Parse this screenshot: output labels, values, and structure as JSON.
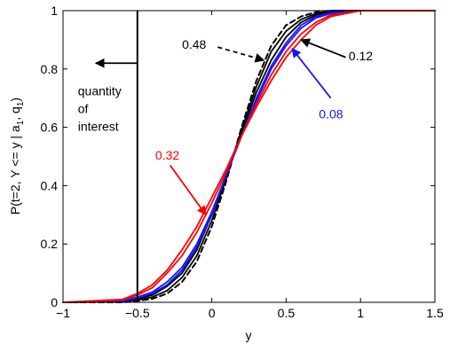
{
  "chart_data": {
    "type": "line",
    "title": "",
    "xlabel": "y",
    "ylabel": "P(t=2, Y <= y | a_1, q_1)",
    "ylabel_parts": {
      "main": "P(t=2, Y <= y | a",
      "sub1": "1",
      "mid": ", q",
      "sub2": "1",
      "end": ")"
    },
    "xlim": [
      -1,
      1.5
    ],
    "ylim": [
      0,
      1
    ],
    "xticks": [
      -1,
      -0.5,
      0,
      0.5,
      1,
      1.5
    ],
    "xtick_labels": [
      "−1",
      "−0.5",
      "0",
      "0.5",
      "1",
      "1.5"
    ],
    "yticks": [
      0,
      0.2,
      0.4,
      0.6,
      0.8,
      1
    ],
    "ytick_labels": [
      "0",
      "0.2",
      "0.4",
      "0.6",
      "0.8",
      "1"
    ],
    "grid": false,
    "colors": {
      "black": "#000000",
      "blue": "#1515ff",
      "red": "#ff0000"
    },
    "series": [
      {
        "color": "#000000",
        "dash": true,
        "width": 2.0,
        "x": [
          -1,
          -0.6,
          -0.5,
          -0.4,
          -0.3,
          -0.2,
          -0.1,
          0,
          0.1,
          0.2,
          0.3,
          0.4,
          0.5,
          0.6,
          0.7,
          0.8,
          1,
          1.5
        ],
        "y": [
          0,
          0,
          0.005,
          0.012,
          0.03,
          0.07,
          0.14,
          0.26,
          0.42,
          0.6,
          0.76,
          0.88,
          0.95,
          0.98,
          0.995,
          1,
          1,
          1
        ]
      },
      {
        "color": "#000000",
        "dash": false,
        "width": 1.8,
        "x": [
          -1,
          -0.6,
          -0.5,
          -0.4,
          -0.3,
          -0.2,
          -0.1,
          0,
          0.1,
          0.2,
          0.3,
          0.4,
          0.5,
          0.6,
          0.7,
          0.8,
          1,
          1.5
        ],
        "y": [
          0,
          0.002,
          0.008,
          0.018,
          0.04,
          0.085,
          0.16,
          0.28,
          0.43,
          0.59,
          0.74,
          0.86,
          0.93,
          0.97,
          0.99,
          1,
          1,
          1
        ]
      },
      {
        "color": "#000000",
        "dash": false,
        "width": 1.8,
        "x": [
          -1,
          -0.6,
          -0.5,
          -0.4,
          -0.3,
          -0.2,
          -0.1,
          0,
          0.1,
          0.2,
          0.3,
          0.4,
          0.5,
          0.6,
          0.7,
          0.8,
          1,
          1.5
        ],
        "y": [
          0,
          0.003,
          0.012,
          0.025,
          0.055,
          0.1,
          0.18,
          0.3,
          0.44,
          0.58,
          0.72,
          0.83,
          0.91,
          0.96,
          0.985,
          0.997,
          1,
          1
        ]
      },
      {
        "color": "#1515ff",
        "dash": false,
        "width": 1.8,
        "x": [
          -1,
          -0.6,
          -0.5,
          -0.4,
          -0.3,
          -0.2,
          -0.1,
          0,
          0.1,
          0.2,
          0.3,
          0.4,
          0.5,
          0.6,
          0.7,
          0.8,
          1,
          1.5
        ],
        "y": [
          0,
          0.004,
          0.015,
          0.03,
          0.06,
          0.11,
          0.19,
          0.3,
          0.44,
          0.57,
          0.7,
          0.81,
          0.89,
          0.95,
          0.98,
          0.993,
          1,
          1
        ]
      },
      {
        "color": "#1515ff",
        "dash": false,
        "width": 1.8,
        "x": [
          -1,
          -0.6,
          -0.5,
          -0.4,
          -0.3,
          -0.2,
          -0.1,
          0,
          0.1,
          0.2,
          0.3,
          0.4,
          0.5,
          0.6,
          0.7,
          0.8,
          1,
          1.5
        ],
        "y": [
          0,
          0.005,
          0.018,
          0.035,
          0.07,
          0.12,
          0.2,
          0.31,
          0.44,
          0.57,
          0.69,
          0.8,
          0.88,
          0.94,
          0.975,
          0.99,
          1,
          1
        ]
      },
      {
        "color": "#ff0000",
        "dash": false,
        "width": 1.8,
        "x": [
          -1,
          -0.6,
          -0.5,
          -0.4,
          -0.3,
          -0.2,
          -0.1,
          0,
          0.1,
          0.2,
          0.3,
          0.4,
          0.5,
          0.6,
          0.7,
          0.8,
          1,
          1.5
        ],
        "y": [
          0,
          0.008,
          0.025,
          0.05,
          0.1,
          0.16,
          0.24,
          0.34,
          0.45,
          0.57,
          0.68,
          0.78,
          0.86,
          0.92,
          0.96,
          0.985,
          1,
          1
        ]
      },
      {
        "color": "#ff0000",
        "dash": false,
        "width": 1.8,
        "x": [
          -1,
          -0.6,
          -0.5,
          -0.4,
          -0.3,
          -0.2,
          -0.1,
          0,
          0.1,
          0.2,
          0.3,
          0.4,
          0.5,
          0.6,
          0.7,
          0.8,
          1,
          1.5
        ],
        "y": [
          0,
          0.01,
          0.03,
          0.06,
          0.11,
          0.18,
          0.26,
          0.36,
          0.46,
          0.57,
          0.67,
          0.76,
          0.84,
          0.9,
          0.95,
          0.98,
          1,
          1
        ]
      }
    ],
    "vertical_line": {
      "x": -0.5,
      "color": "#000000"
    },
    "annotations": [
      {
        "id": "quantity",
        "lines": [
          "quantity",
          "of",
          "interest"
        ],
        "color": "#000000",
        "x": -0.9,
        "y": 0.71,
        "anchor": "start",
        "arrow_from": [
          -0.5,
          0.82
        ],
        "arrow_to": [
          -0.78,
          0.82
        ]
      },
      {
        "id": "a048",
        "text": "0.48",
        "color": "#000000",
        "x": -0.2,
        "y": 0.87,
        "anchor": "start",
        "arrow_from": [
          0.04,
          0.875
        ],
        "arrow_to": [
          0.35,
          0.83
        ],
        "dashed": true
      },
      {
        "id": "a012",
        "text": "0.12",
        "color": "#000000",
        "x": 0.92,
        "y": 0.83,
        "anchor": "start",
        "arrow_from": [
          0.9,
          0.84
        ],
        "arrow_to": [
          0.6,
          0.9
        ]
      },
      {
        "id": "a008",
        "text": "0.08",
        "color": "#1515ff",
        "x": 0.72,
        "y": 0.63,
        "anchor": "start",
        "arrow_from": [
          0.8,
          0.7
        ],
        "arrow_to": [
          0.54,
          0.87
        ]
      },
      {
        "id": "a032",
        "text": "0.32",
        "color": "#ff0000",
        "x": -0.38,
        "y": 0.49,
        "anchor": "start",
        "arrow_from": [
          -0.28,
          0.47
        ],
        "arrow_to": [
          -0.04,
          0.3
        ]
      }
    ]
  }
}
